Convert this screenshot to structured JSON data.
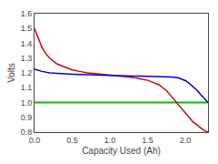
{
  "chart_data": {
    "type": "line",
    "xlabel": "Capacity Used (Ah)",
    "ylabel": "Volts",
    "xlim": [
      0,
      2.3
    ],
    "ylim": [
      0.8,
      1.6
    ],
    "xticks": [
      {
        "value": 0,
        "label": "0.0"
      },
      0.5,
      {
        "value": 1.0,
        "label": "1.0"
      },
      1.5,
      {
        "value": 2.0,
        "label": "2.0"
      }
    ],
    "yticks": [
      0.8,
      0.9,
      {
        "value": 1.0,
        "label": "1.0"
      },
      1.1,
      1.2,
      1.3,
      1.4,
      1.5,
      1.6
    ],
    "grid": false,
    "series": [
      {
        "type": "hline",
        "color": "#00bb00",
        "values": [
          1.0
        ]
      },
      {
        "type": "line",
        "color": "#cc0000",
        "x": [
          0,
          0.03,
          0.06,
          0.1,
          0.15,
          0.2,
          0.3,
          0.4,
          0.5,
          0.6,
          0.7,
          0.8,
          0.9,
          1.0,
          1.1,
          1.2,
          1.3,
          1.4,
          1.5,
          1.6,
          1.65,
          1.7,
          1.75,
          1.8,
          1.85,
          1.9,
          1.95,
          2.0,
          2.05,
          2.1,
          2.15,
          2.2,
          2.25,
          2.3
        ],
        "values": [
          1.5,
          1.46,
          1.42,
          1.37,
          1.33,
          1.3,
          1.26,
          1.24,
          1.22,
          1.21,
          1.2,
          1.195,
          1.19,
          1.185,
          1.18,
          1.175,
          1.17,
          1.16,
          1.15,
          1.13,
          1.12,
          1.1,
          1.08,
          1.05,
          1.02,
          0.99,
          0.96,
          0.93,
          0.9,
          0.87,
          0.85,
          0.83,
          0.81,
          0.8
        ]
      },
      {
        "type": "line",
        "color": "#0000cc",
        "x": [
          0,
          0.1,
          0.2,
          0.3,
          0.4,
          0.5,
          0.6,
          0.7,
          0.8,
          0.9,
          1.0,
          1.1,
          1.2,
          1.3,
          1.4,
          1.5,
          1.6,
          1.7,
          1.8,
          1.9,
          1.95,
          2.0,
          2.05,
          2.1,
          2.15,
          2.2,
          2.25,
          2.3
        ],
        "values": [
          1.225,
          1.21,
          1.2,
          1.196,
          1.193,
          1.191,
          1.189,
          1.187,
          1.186,
          1.184,
          1.183,
          1.181,
          1.18,
          1.179,
          1.178,
          1.177,
          1.176,
          1.174,
          1.172,
          1.168,
          1.16,
          1.148,
          1.13,
          1.11,
          1.085,
          1.055,
          1.025,
          1.0
        ]
      }
    ]
  }
}
